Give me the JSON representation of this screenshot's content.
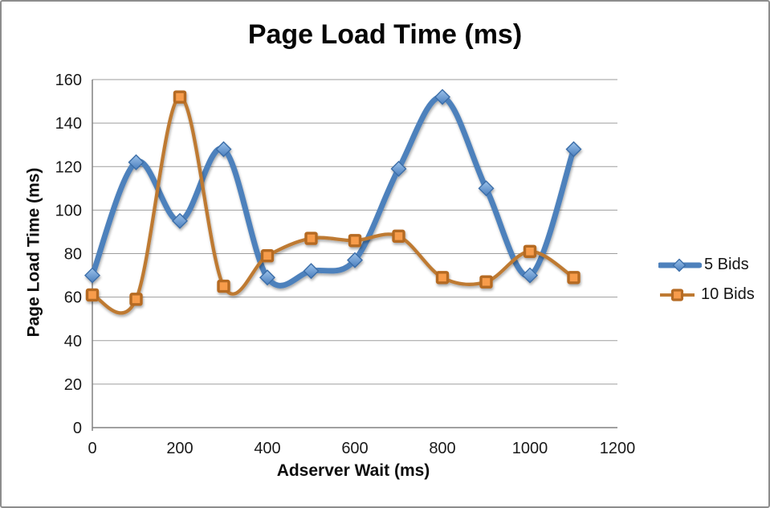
{
  "chart_data": {
    "type": "line",
    "smooth": true,
    "title": "Page Load Time (ms)",
    "xlabel": "Adserver Wait (ms)",
    "ylabel": "Page Load Time (ms)",
    "x": [
      0,
      100,
      200,
      300,
      400,
      500,
      600,
      700,
      800,
      900,
      1000,
      1100
    ],
    "series": [
      {
        "name": "5 Bids",
        "values": [
          70,
          122,
          95,
          128,
          69,
          72,
          77,
          119,
          152,
          110,
          70,
          128
        ],
        "color": "#4E81BC",
        "marker": "diamond",
        "marker_fill_light": "#9CC2EA",
        "marker_fill": "#4B7FBE",
        "marker_border": "#3A6DA8",
        "line_width": 7
      },
      {
        "name": "10 Bids",
        "values": [
          61,
          59,
          152,
          65,
          79,
          87,
          86,
          88,
          69,
          67,
          81,
          69
        ],
        "color": "#BE7A33",
        "marker": "square",
        "marker_fill": "#F79C4C",
        "marker_border": "#B56B24",
        "line_width": 4.3
      }
    ],
    "xlim": [
      0,
      1200
    ],
    "ylim": [
      0,
      160
    ],
    "xticks": [
      0,
      200,
      400,
      600,
      800,
      1000,
      1200
    ],
    "yticks": [
      0,
      20,
      40,
      60,
      80,
      100,
      120,
      140,
      160
    ],
    "grid": "horizontal",
    "legend_position": "right",
    "gridline_color": "#9E9E9E",
    "axis_color": "#808080",
    "text_color": "#1A1A1A",
    "frame_border_color": "#8D8D8D",
    "background": "#FFFFFF"
  }
}
